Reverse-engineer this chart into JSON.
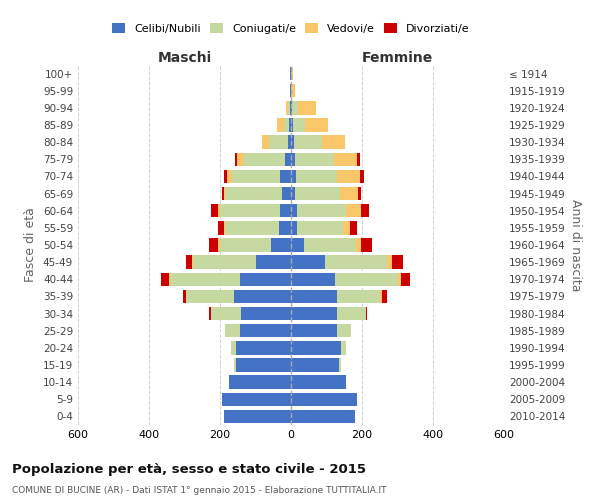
{
  "age_groups": [
    "0-4",
    "5-9",
    "10-14",
    "15-19",
    "20-24",
    "25-29",
    "30-34",
    "35-39",
    "40-44",
    "45-49",
    "50-54",
    "55-59",
    "60-64",
    "65-69",
    "70-74",
    "75-79",
    "80-84",
    "85-89",
    "90-94",
    "95-99",
    "100+"
  ],
  "birth_years": [
    "2010-2014",
    "2005-2009",
    "2000-2004",
    "1995-1999",
    "1990-1994",
    "1985-1989",
    "1980-1984",
    "1975-1979",
    "1970-1974",
    "1965-1969",
    "1960-1964",
    "1955-1959",
    "1950-1954",
    "1945-1949",
    "1940-1944",
    "1935-1939",
    "1930-1934",
    "1925-1929",
    "1920-1924",
    "1915-1919",
    "≤ 1914"
  ],
  "male_celibi": [
    190,
    195,
    175,
    155,
    155,
    145,
    140,
    160,
    145,
    100,
    55,
    35,
    30,
    25,
    30,
    18,
    8,
    5,
    3,
    2,
    2
  ],
  "male_coniugati": [
    0,
    0,
    0,
    5,
    15,
    40,
    85,
    135,
    195,
    175,
    145,
    150,
    170,
    160,
    135,
    115,
    55,
    15,
    5,
    0,
    0
  ],
  "male_vedovi": [
    0,
    0,
    0,
    0,
    0,
    0,
    0,
    0,
    5,
    5,
    5,
    5,
    5,
    5,
    15,
    20,
    20,
    20,
    5,
    0,
    0
  ],
  "male_divorziati": [
    0,
    0,
    0,
    0,
    0,
    0,
    5,
    10,
    20,
    15,
    25,
    15,
    20,
    5,
    10,
    5,
    0,
    0,
    0,
    0,
    0
  ],
  "female_celibi": [
    180,
    185,
    155,
    135,
    140,
    130,
    130,
    130,
    125,
    95,
    38,
    18,
    18,
    10,
    15,
    12,
    8,
    5,
    3,
    0,
    0
  ],
  "female_coniugati": [
    0,
    0,
    0,
    5,
    15,
    40,
    80,
    120,
    175,
    175,
    145,
    128,
    138,
    128,
    115,
    108,
    80,
    35,
    18,
    0,
    0
  ],
  "female_vedovi": [
    0,
    0,
    0,
    0,
    0,
    0,
    0,
    5,
    10,
    15,
    15,
    20,
    40,
    50,
    65,
    65,
    65,
    65,
    50,
    10,
    5
  ],
  "female_divorziati": [
    0,
    0,
    0,
    0,
    0,
    0,
    5,
    15,
    25,
    30,
    30,
    20,
    25,
    10,
    10,
    10,
    0,
    0,
    0,
    0,
    0
  ],
  "colors": {
    "celibi": "#4472C4",
    "coniugati": "#c5d9a0",
    "vedovi": "#f9c76a",
    "divorziati": "#cc0000"
  },
  "xlim": 600,
  "title": "Popolazione per età, sesso e stato civile - 2015",
  "subtitle": "COMUNE DI BUCINE (AR) - Dati ISTAT 1° gennaio 2015 - Elaborazione TUTTITALIA.IT",
  "ylabel_left": "Fasce di età",
  "ylabel_right": "Anni di nascita",
  "xlabel_maschi": "Maschi",
  "xlabel_femmine": "Femmine",
  "bg_color": "#ffffff",
  "grid_color": "#cccccc",
  "legend_labels": [
    "Celibi/Nubili",
    "Coniugati/e",
    "Vedovi/e",
    "Divorziati/e"
  ]
}
